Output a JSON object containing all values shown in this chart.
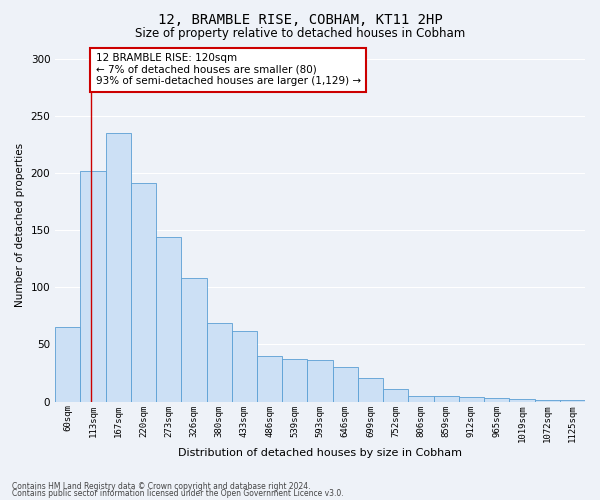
{
  "title1": "12, BRAMBLE RISE, COBHAM, KT11 2HP",
  "title2": "Size of property relative to detached houses in Cobham",
  "xlabel": "Distribution of detached houses by size in Cobham",
  "ylabel": "Number of detached properties",
  "categories": [
    "60sqm",
    "113sqm",
    "167sqm",
    "220sqm",
    "273sqm",
    "326sqm",
    "380sqm",
    "433sqm",
    "486sqm",
    "539sqm",
    "593sqm",
    "646sqm",
    "699sqm",
    "752sqm",
    "806sqm",
    "859sqm",
    "912sqm",
    "965sqm",
    "1019sqm",
    "1072sqm",
    "1125sqm"
  ],
  "values": [
    65,
    202,
    235,
    191,
    144,
    108,
    69,
    62,
    40,
    37,
    36,
    30,
    21,
    11,
    5,
    5,
    4,
    3,
    2,
    1,
    1
  ],
  "bar_color": "#cce0f5",
  "bar_edge_color": "#5a9fd4",
  "red_line_x": 0.93,
  "annotation_text": "12 BRAMBLE RISE: 120sqm\n← 7% of detached houses are smaller (80)\n93% of semi-detached houses are larger (1,129) →",
  "annotation_box_color": "#ffffff",
  "annotation_box_edge": "#cc0000",
  "ylim": [
    0,
    310
  ],
  "yticks": [
    0,
    50,
    100,
    150,
    200,
    250,
    300
  ],
  "bg_color": "#eef2f8",
  "grid_color": "#ffffff",
  "footer1": "Contains HM Land Registry data © Crown copyright and database right 2024.",
  "footer2": "Contains public sector information licensed under the Open Government Licence v3.0."
}
